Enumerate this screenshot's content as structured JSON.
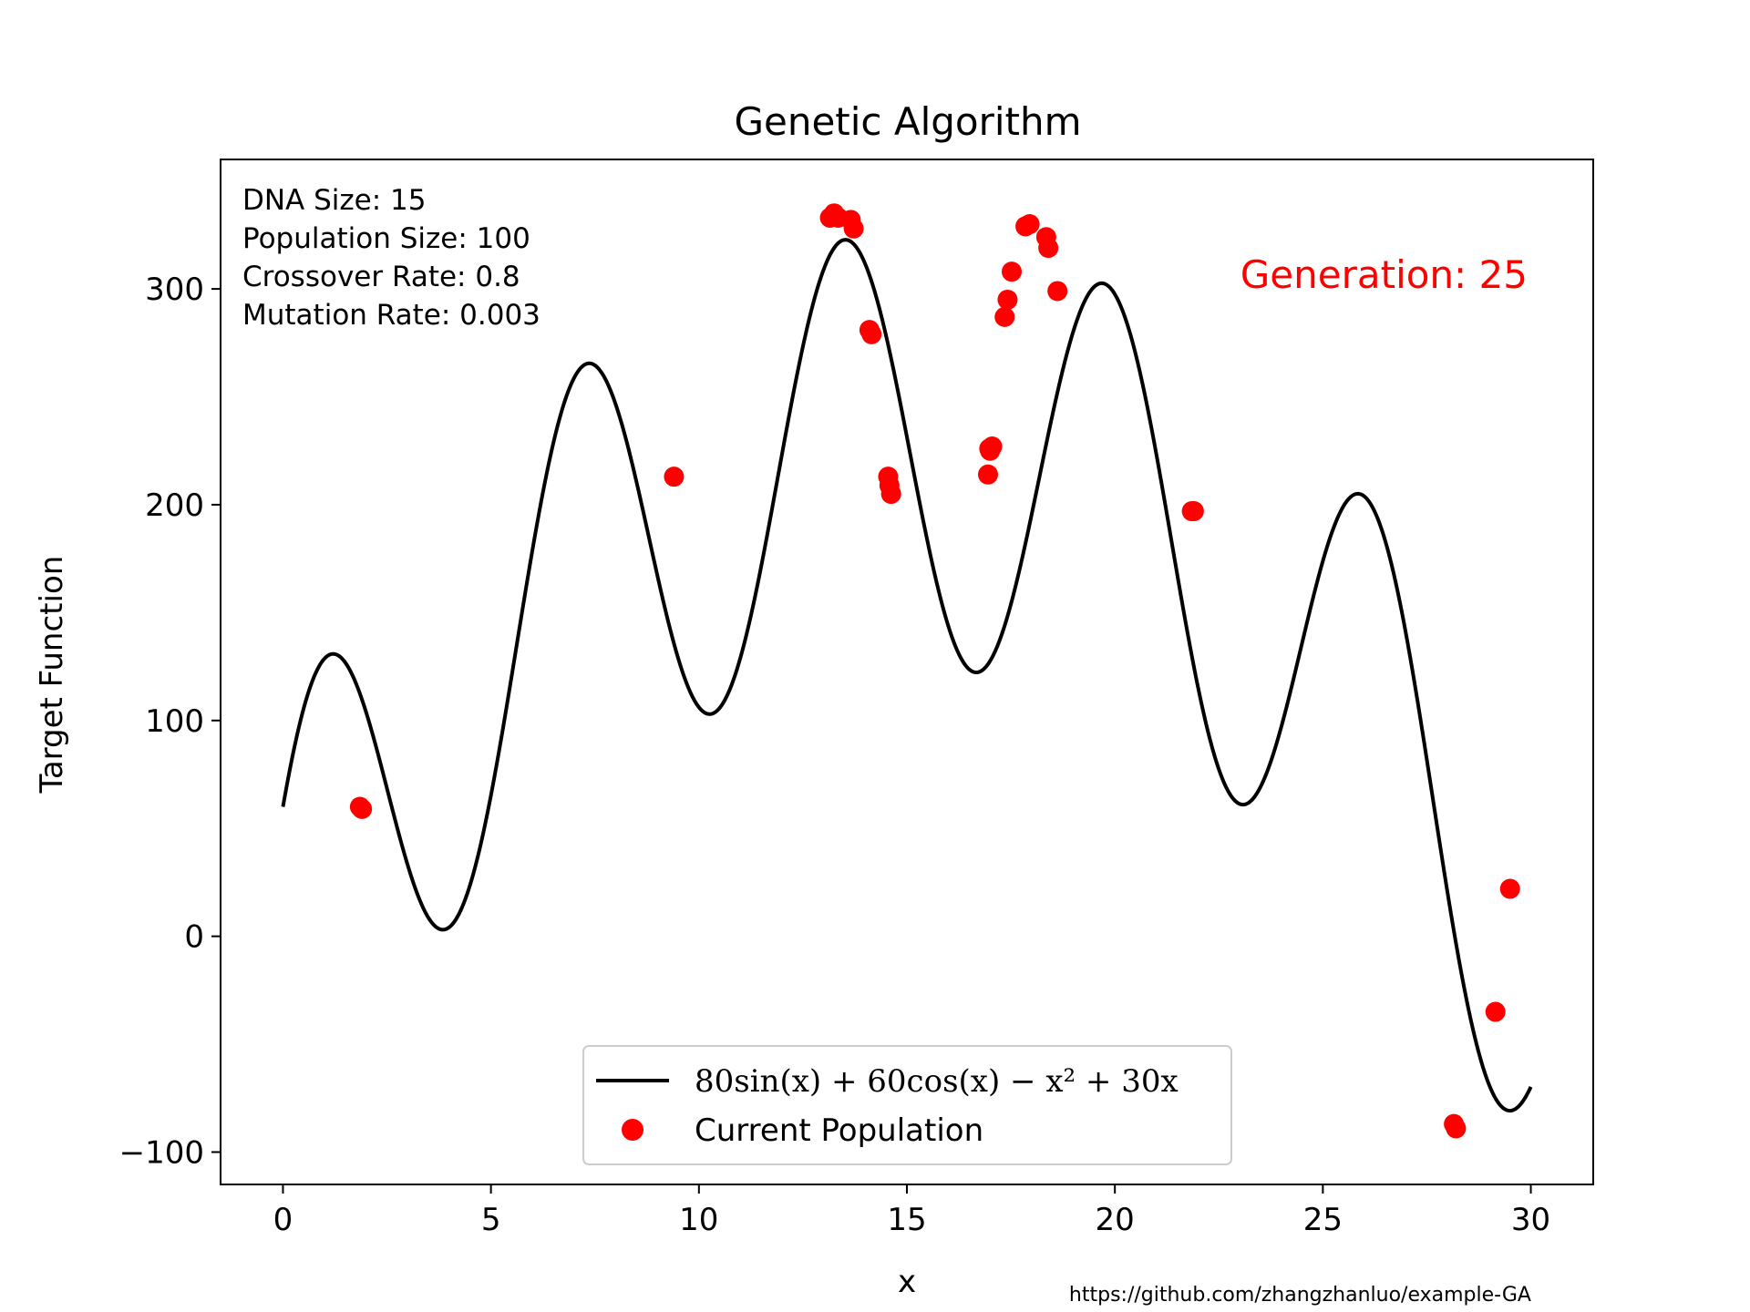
{
  "chart_data": {
    "type": "scatter",
    "title": "Genetic Algorithm",
    "xlabel": "x",
    "ylabel": "Target Function",
    "xlim": [
      -1.5,
      31.5
    ],
    "ylim": [
      -115,
      360
    ],
    "xticks": [
      0,
      5,
      10,
      15,
      20,
      25,
      30
    ],
    "yticks": [
      -100,
      0,
      100,
      200,
      300
    ],
    "ytick_labels": [
      "−100",
      "0",
      "100",
      "200",
      "300"
    ],
    "grid": false,
    "legend_position": "lower center",
    "info_lines": [
      "DNA Size: 15",
      "Population Size: 100",
      "Crossover Rate: 0.8",
      "Mutation Rate: 0.003"
    ],
    "generation_label": "Generation: 25",
    "footer": "https://github.com/zhangzhanluo/example-GA",
    "series": [
      {
        "name": "80sin(x) + 60cos(x) − x² + 30x",
        "kind": "line",
        "color": "#000000",
        "function": "80*sin(x) + 60*cos(x) - x^2 + 30*x",
        "x_range": [
          0,
          30
        ]
      },
      {
        "name": "Current Population",
        "kind": "scatter",
        "color": "#ff0000",
        "x": [
          1.85,
          1.9,
          9.4,
          13.15,
          13.25,
          13.35,
          13.65,
          13.72,
          14.1,
          14.15,
          14.55,
          14.58,
          14.62,
          16.95,
          16.98,
          17.0,
          17.05,
          17.35,
          17.42,
          17.52,
          17.85,
          17.95,
          18.35,
          18.4,
          18.62,
          21.85,
          21.9,
          28.15,
          28.2,
          29.15,
          29.5
        ],
        "y": [
          60,
          59,
          213,
          333,
          335,
          333,
          332,
          328,
          281,
          279,
          213,
          209,
          205,
          214,
          226,
          225,
          227,
          287,
          295,
          308,
          329,
          330,
          324,
          319,
          299,
          197,
          197,
          -87,
          -89,
          -35,
          22
        ]
      }
    ]
  }
}
